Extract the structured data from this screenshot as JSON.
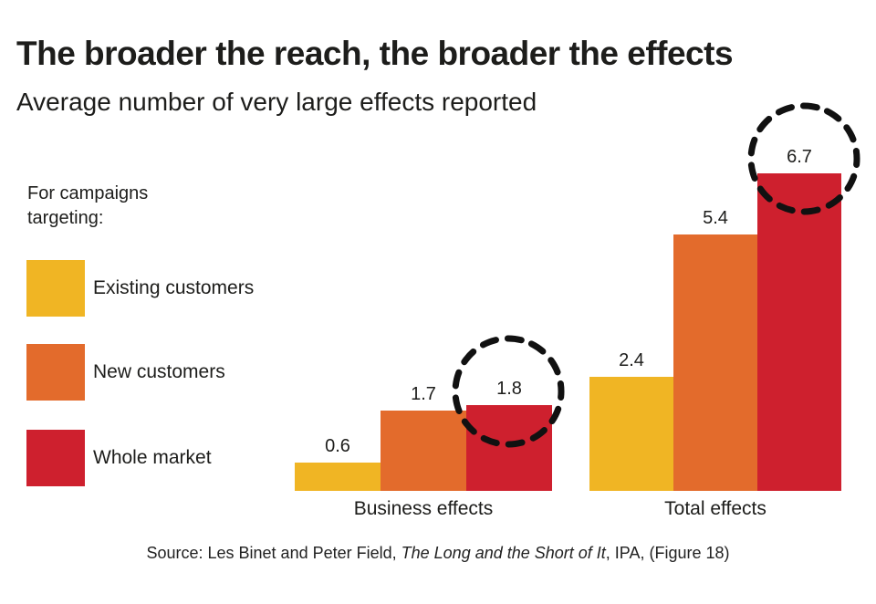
{
  "chart_data": {
    "type": "bar",
    "title": "The broader the reach, the broader the effects",
    "subtitle": "Average number of very large effects reported",
    "legend_heading": "For campaigns targeting:",
    "legend_position": "left",
    "categories": [
      "Business effects",
      "Total effects"
    ],
    "series": [
      {
        "name": "Existing customers",
        "color": "#F0B524",
        "values": [
          0.6,
          2.4
        ]
      },
      {
        "name": "New customers",
        "color": "#E36B2C",
        "values": [
          1.7,
          5.4
        ]
      },
      {
        "name": "Whole market",
        "color": "#CE202E",
        "values": [
          1.8,
          6.7
        ]
      }
    ],
    "value_labels": true,
    "grid": false,
    "axes_visible": false,
    "ylim": [
      0,
      7
    ],
    "annotations": [
      {
        "type": "dashed-circle",
        "target_series": "Whole market",
        "target_category": "Business effects",
        "color": "#111111"
      },
      {
        "type": "dashed-circle",
        "target_series": "Whole market",
        "target_category": "Total effects",
        "color": "#111111"
      }
    ]
  },
  "source": {
    "prefix": "Source: Les Binet and Peter Field, ",
    "italic": "The Long and the Short of It",
    "suffix": ", IPA, (Figure 18)"
  }
}
